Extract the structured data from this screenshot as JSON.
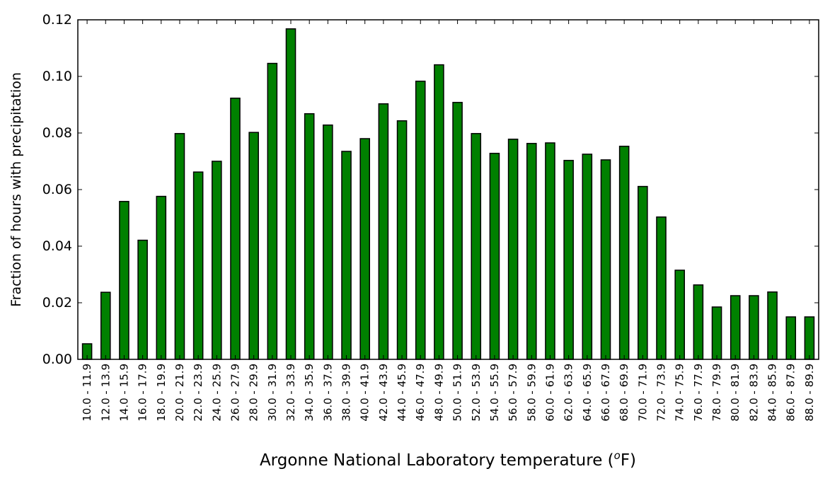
{
  "chart_data": {
    "type": "bar",
    "title": "",
    "xlabel": "Argonne National Laboratory temperature (",
    "xlabel_unit_sup": "o",
    "xlabel_unit_tail": "F)",
    "ylabel": "Fraction of hours with precipitation",
    "ylim": [
      0,
      0.12
    ],
    "yticks": [
      0.0,
      0.02,
      0.04,
      0.06,
      0.08,
      0.1,
      0.12
    ],
    "ytick_labels": [
      "0.00",
      "0.02",
      "0.04",
      "0.06",
      "0.08",
      "0.10",
      "0.12"
    ],
    "grid": false,
    "bar_color": "#008000",
    "bar_edge_color": "#000000",
    "categories": [
      "10.0 - 11.9",
      "12.0 - 13.9",
      "14.0 - 15.9",
      "16.0 - 17.9",
      "18.0 - 19.9",
      "20.0 - 21.9",
      "22.0 - 23.9",
      "24.0 - 25.9",
      "26.0 - 27.9",
      "28.0 - 29.9",
      "30.0 - 31.9",
      "32.0 - 33.9",
      "34.0 - 35.9",
      "36.0 - 37.9",
      "38.0 - 39.9",
      "40.0 - 41.9",
      "42.0 - 43.9",
      "44.0 - 45.9",
      "46.0 - 47.9",
      "48.0 - 49.9",
      "50.0 - 51.9",
      "52.0 - 53.9",
      "54.0 - 55.9",
      "56.0 - 57.9",
      "58.0 - 59.9",
      "60.0 - 61.9",
      "62.0 - 63.9",
      "64.0 - 65.9",
      "66.0 - 67.9",
      "68.0 - 69.9",
      "70.0 - 71.9",
      "72.0 - 73.9",
      "74.0 - 75.9",
      "76.0 - 77.9",
      "78.0 - 79.9",
      "80.0 - 81.9",
      "82.0 - 83.9",
      "84.0 - 85.9",
      "86.0 - 87.9",
      "88.0 - 89.9"
    ],
    "values": [
      0.0055,
      0.0237,
      0.0558,
      0.0421,
      0.0576,
      0.0798,
      0.0662,
      0.07,
      0.0923,
      0.0802,
      0.1046,
      0.1168,
      0.0868,
      0.0828,
      0.0735,
      0.078,
      0.0903,
      0.0843,
      0.0983,
      0.1041,
      0.0908,
      0.0798,
      0.0728,
      0.0778,
      0.0763,
      0.0765,
      0.0703,
      0.0725,
      0.0705,
      0.0753,
      0.0611,
      0.0503,
      0.0315,
      0.0263,
      0.0185,
      0.0225,
      0.0225,
      0.0238,
      0.015,
      0.015
    ]
  }
}
